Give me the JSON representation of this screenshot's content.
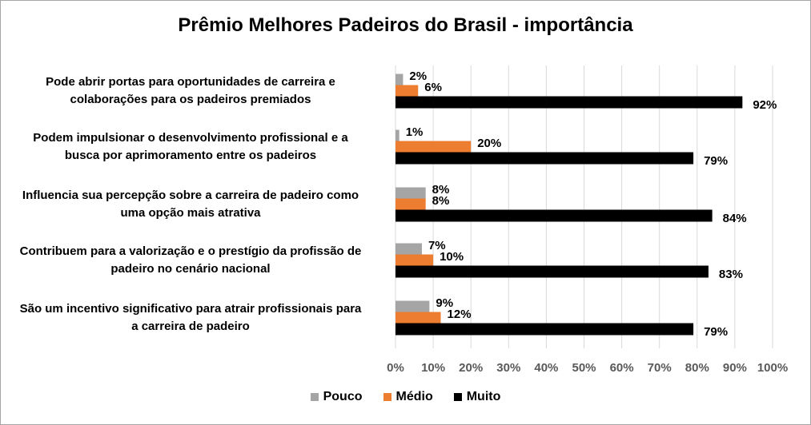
{
  "chart_data": {
    "type": "bar",
    "orientation": "horizontal",
    "title": "Prêmio Melhores Padeiros do Brasil - importância",
    "categories": [
      "Pode abrir portas para oportunidades de carreira e colaborações para os padeiros premiados",
      "Podem impulsionar o desenvolvimento profissional e a busca por aprimoramento entre os padeiros",
      "Influencia sua percepção sobre a carreira de padeiro como uma opção mais atrativa",
      "Contribuem para a valorização e o prestígio da profissão de padeiro no cenário nacional",
      "São um incentivo significativo para atrair profissionais para a carreira de padeiro"
    ],
    "category_lines": [
      [
        "Pode abrir portas para oportunidades de carreira e",
        "colaborações para os padeiros premiados"
      ],
      [
        "Podem impulsionar o desenvolvimento profissional e a",
        "busca por aprimoramento entre os padeiros"
      ],
      [
        "Influencia sua percepção sobre a carreira de padeiro como",
        "uma opção mais atrativa"
      ],
      [
        "Contribuem para a valorização e o prestígio da profissão de",
        "padeiro no cenário nacional"
      ],
      [
        "São um incentivo significativo para atrair profissionais para",
        "a carreira de padeiro"
      ]
    ],
    "series": [
      {
        "name": "Pouco",
        "color": "#a5a5a5",
        "values": [
          2,
          1,
          8,
          7,
          9
        ]
      },
      {
        "name": "Médio",
        "color": "#ed7d31",
        "values": [
          6,
          20,
          8,
          10,
          12
        ]
      },
      {
        "name": "Muito",
        "color": "#000000",
        "values": [
          92,
          79,
          84,
          83,
          79
        ]
      }
    ],
    "value_suffix": "%",
    "xlim": [
      0,
      100
    ],
    "xticks": [
      "0%",
      "10%",
      "20%",
      "30%",
      "40%",
      "50%",
      "60%",
      "70%",
      "80%",
      "90%",
      "100%"
    ],
    "grid": true,
    "legend_position": "bottom"
  }
}
